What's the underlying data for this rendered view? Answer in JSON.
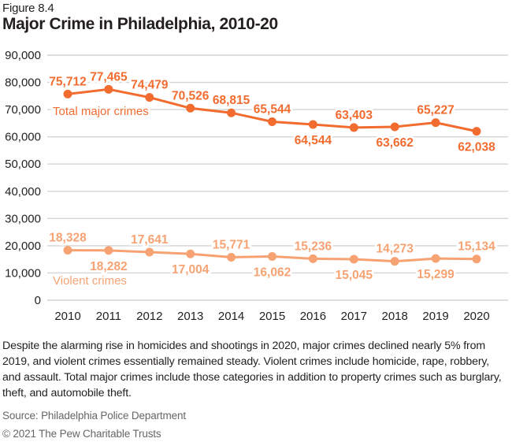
{
  "header": {
    "figure_label": "Figure 8.4",
    "title": "Major Crime in Philadelphia, 2010-20"
  },
  "caption": "Despite the alarming rise in homicides and shootings in 2020, major crimes declined nearly 5% from 2019, and violent crimes essentially remained steady. Violent crimes include homicide, rape, robbery, and assault. Total major crimes include those categories in addition to property crimes such as burglary, theft, and automobile theft.",
  "source": "Source: Philadelphia Police Department",
  "copyright": "© 2021 The Pew Charitable Trusts",
  "chart_data": {
    "type": "line",
    "title": "Major Crime in Philadelphia, 2010-20",
    "xlabel": "",
    "ylabel": "",
    "x": [
      "2010",
      "2011",
      "2012",
      "2013",
      "2014",
      "2015",
      "2016",
      "2017",
      "2018",
      "2019",
      "2020"
    ],
    "ylim": [
      0,
      90000
    ],
    "yticks": [
      0,
      10000,
      20000,
      30000,
      40000,
      50000,
      60000,
      70000,
      80000,
      90000
    ],
    "ytick_labels": [
      "0",
      "10,000",
      "20,000",
      "30,000",
      "40,000",
      "50,000",
      "60,000",
      "70,000",
      "80,000",
      "90,000"
    ],
    "grid": true,
    "legend": "inline labels",
    "series": [
      {
        "name": "Total major crimes",
        "color": "#f26c30",
        "values": [
          75712,
          77465,
          74479,
          70526,
          68815,
          65544,
          64544,
          63403,
          63662,
          65227,
          62038
        ],
        "labels": [
          "75,712",
          "77,465",
          "74,479",
          "70,526",
          "68,815",
          "65,544",
          "64,544",
          "63,403",
          "63,662",
          "65,227",
          "62,038"
        ],
        "label_pos": [
          "above",
          "above",
          "above",
          "above",
          "above",
          "above",
          "below",
          "above",
          "below",
          "above",
          "below"
        ]
      },
      {
        "name": "Violent crimes",
        "color": "#f7a273",
        "values": [
          18328,
          18282,
          17641,
          17004,
          15771,
          16062,
          15236,
          15045,
          14273,
          15299,
          15134
        ],
        "labels": [
          "18,328",
          "18,282",
          "17,641",
          "17,004",
          "15,771",
          "16,062",
          "15,236",
          "15,045",
          "14,273",
          "15,299",
          "15,134"
        ],
        "label_pos": [
          "above",
          "below",
          "above",
          "below",
          "above",
          "below",
          "above",
          "below",
          "above",
          "below",
          "above"
        ]
      }
    ]
  }
}
